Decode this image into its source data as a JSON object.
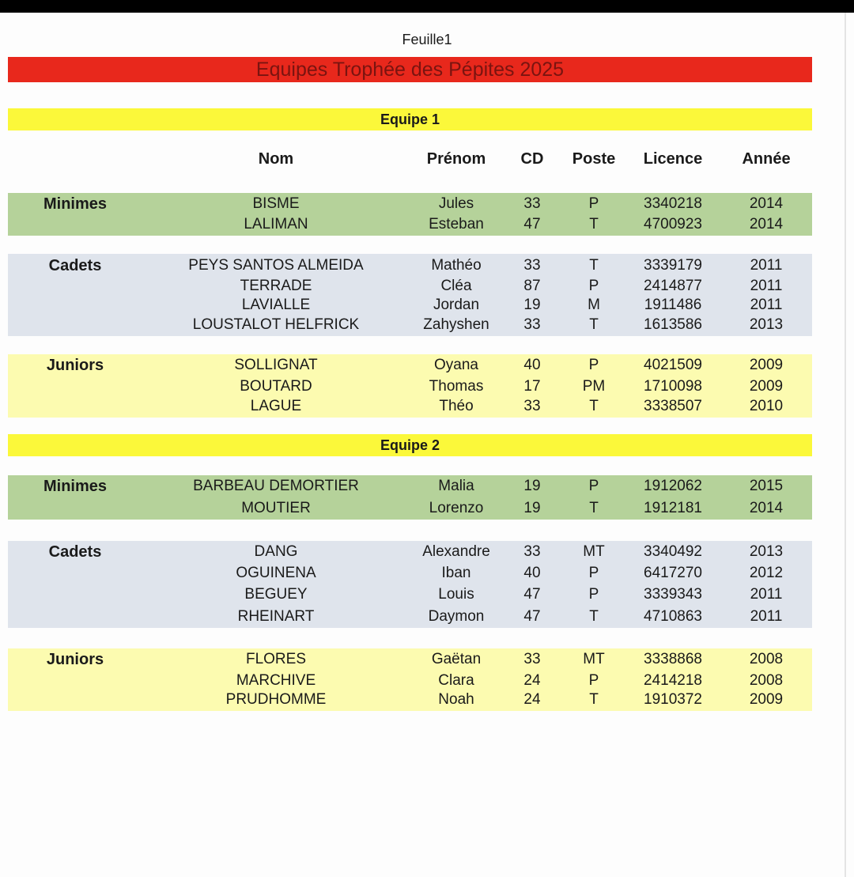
{
  "sheet_name": "Feuille1",
  "title": "Equipes Trophée des Pépites 2025",
  "headers": [
    "Nom",
    "Prénom",
    "CD",
    "Poste",
    "Licence",
    "Année"
  ],
  "colors": {
    "title": "#e8281c",
    "team_bar": "#fbf83a",
    "minimes": "#b5d29a",
    "cadets": "#dfe4ec",
    "juniors": "#fcfbb0"
  },
  "teams": [
    {
      "name": "Equipe 1",
      "groups": [
        {
          "category": "Minimes",
          "rows": [
            [
              "BISME",
              "Jules",
              "33",
              "P",
              "3340218",
              "2014"
            ],
            [
              "LALIMAN",
              "Esteban",
              "47",
              "T",
              "4700923",
              "2014"
            ]
          ]
        },
        {
          "category": "Cadets",
          "rows": [
            [
              "PEYS SANTOS ALMEIDA",
              "Mathéo",
              "33",
              "T",
              "3339179",
              "2011"
            ],
            [
              "TERRADE",
              "Cléa",
              "87",
              "P",
              "2414877",
              "2011"
            ],
            [
              "LAVIALLE",
              "Jordan",
              "19",
              "M",
              "1911486",
              "2011"
            ],
            [
              "LOUSTALOT HELFRICK",
              "Zahyshen",
              "33",
              "T",
              "1613586",
              "2013"
            ]
          ]
        },
        {
          "category": "Juniors",
          "rows": [
            [
              "SOLLIGNAT",
              "Oyana",
              "40",
              "P",
              "4021509",
              "2009"
            ],
            [
              "BOUTARD",
              "Thomas",
              "17",
              "PM",
              "1710098",
              "2009"
            ],
            [
              "LAGUE",
              "Théo",
              "33",
              "T",
              "3338507",
              "2010"
            ]
          ]
        }
      ]
    },
    {
      "name": "Equipe 2",
      "groups": [
        {
          "category": "Minimes",
          "rows": [
            [
              "BARBEAU DEMORTIER",
              "Malia",
              "19",
              "P",
              "1912062",
              "2015"
            ],
            [
              "MOUTIER",
              "Lorenzo",
              "19",
              "T",
              "1912181",
              "2014"
            ]
          ]
        },
        {
          "category": "Cadets",
          "rows": [
            [
              "DANG",
              "Alexandre",
              "33",
              "MT",
              "3340492",
              "2013"
            ],
            [
              "OGUINENA",
              "Iban",
              "40",
              "P",
              "6417270",
              "2012"
            ],
            [
              "BEGUEY",
              "Louis",
              "47",
              "P",
              "3339343",
              "2011"
            ],
            [
              "RHEINART",
              "Daymon",
              "47",
              "T",
              "4710863",
              "2011"
            ]
          ]
        },
        {
          "category": "Juniors",
          "rows": [
            [
              "FLORES",
              "Gaëtan",
              "33",
              "MT",
              "3338868",
              "2008"
            ],
            [
              "MARCHIVE",
              "Clara",
              "24",
              "P",
              "2414218",
              "2008"
            ],
            [
              "PRUDHOMME",
              "Noah",
              "24",
              "T",
              "1910372",
              "2009"
            ]
          ]
        }
      ]
    }
  ]
}
